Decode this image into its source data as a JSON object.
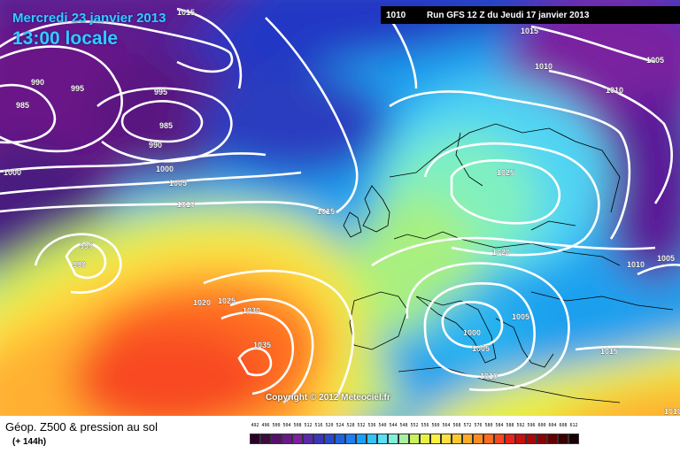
{
  "title": {
    "date": "Mercredi 23 janvier 2013",
    "time": "13:00 locale"
  },
  "run": {
    "left": "1010",
    "right": "Run GFS 12 Z du Jeudi 17 janvier 2013"
  },
  "copyright": "Copyright © 2012 Meteociel.fr",
  "legend": {
    "title": "Géop. Z500 & pression au sol",
    "subtitle": "(+ 144h)",
    "values": [
      "492",
      "496",
      "500",
      "504",
      "508",
      "512",
      "516",
      "520",
      "524",
      "528",
      "532",
      "536",
      "540",
      "544",
      "548",
      "552",
      "556",
      "560",
      "564",
      "568",
      "572",
      "576",
      "580",
      "584",
      "588",
      "592",
      "596",
      "600",
      "604",
      "608",
      "612"
    ],
    "colors": [
      "#2a0028",
      "#3d0a42",
      "#55106a",
      "#6a1888",
      "#7c20a0",
      "#5a2aa8",
      "#3a36b8",
      "#2a48cc",
      "#1f62e0",
      "#1e7ef0",
      "#1aa0f8",
      "#30c4f8",
      "#5ae0f4",
      "#80f0d8",
      "#a8f0a0",
      "#c8f060",
      "#e8f040",
      "#fff040",
      "#ffe040",
      "#ffc830",
      "#ffaa28",
      "#ff8c20",
      "#ff6c20",
      "#f84820",
      "#e82418",
      "#c81010",
      "#a80808",
      "#880404",
      "#600000",
      "#3a0000",
      "#1a0000"
    ]
  },
  "isobars": [
    {
      "text": "1015"
    },
    {
      "text": "990"
    },
    {
      "text": "995"
    },
    {
      "text": "985"
    },
    {
      "text": "995"
    },
    {
      "text": "985"
    },
    {
      "text": "990"
    },
    {
      "text": "1000"
    },
    {
      "text": "1000"
    },
    {
      "text": "1005"
    },
    {
      "text": "1010"
    },
    {
      "text": "995"
    },
    {
      "text": "990"
    },
    {
      "text": "1015"
    },
    {
      "text": "1020"
    },
    {
      "text": "1025"
    },
    {
      "text": "1030"
    },
    {
      "text": "1035"
    },
    {
      "text": "1015"
    },
    {
      "text": "1010"
    },
    {
      "text": "1005"
    },
    {
      "text": "1010"
    },
    {
      "text": "1025"
    },
    {
      "text": "1020"
    },
    {
      "text": "1010"
    },
    {
      "text": "1005"
    },
    {
      "text": "1000"
    },
    {
      "text": "1005"
    },
    {
      "text": "1005"
    },
    {
      "text": "1010"
    },
    {
      "text": "1015"
    },
    {
      "text": "1010"
    }
  ]
}
